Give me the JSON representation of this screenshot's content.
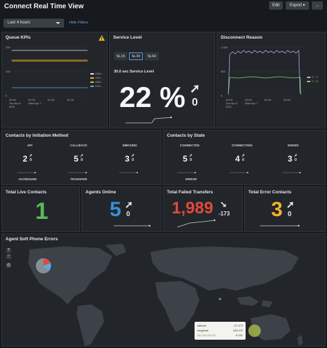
{
  "header": {
    "title": "Connect Real Time View",
    "edit_label": "Edit",
    "export_label": "Export ▾",
    "more_label": "..."
  },
  "filters": {
    "time_range": "Last 4 hours",
    "hide_filters": "Hide Filters"
  },
  "queue_kpis": {
    "title": "Queue KPIs",
    "y_ticks": [
      "200",
      "100",
      "0"
    ],
    "x_ticks": [
      {
        "time": "23:00",
        "date": "Tue Apr 6",
        "year": "2021"
      },
      {
        "time": "00:00",
        "date": "Wed Apr 7",
        "year": ""
      },
      {
        "time": "01:00",
        "date": "",
        "year": ""
      },
      {
        "time": "02:00",
        "date": "",
        "year": ""
      }
    ],
    "legend": [
      "HAN...",
      "SLE...",
      "ABA...",
      "HOL..."
    ],
    "colors": [
      "#e8e8e8",
      "#f0b429",
      "#f0b429",
      "#5fa6e8"
    ],
    "warning_icon": "warning-icon"
  },
  "service_level": {
    "title": "Service Level",
    "tabs": [
      "SL15",
      "SL30",
      "SL60"
    ],
    "active_tab": "SL30",
    "subtitle": "30.0 sec Service Level",
    "value": "22 %",
    "delta": "0"
  },
  "disconnect_reason": {
    "title": "Disconnect Reason",
    "y_ticks": [
      "1,000",
      "500",
      "0"
    ],
    "x_ticks": [
      {
        "time": "23:00",
        "date": "Tue Apr 6",
        "year": "2021"
      },
      {
        "time": "00:00",
        "date": "Wed Apr 7",
        "year": ""
      },
      {
        "time": "01:00",
        "date": "",
        "year": ""
      },
      {
        "time": "02:00",
        "date": "",
        "year": ""
      }
    ],
    "legend": [
      "C...T",
      "C...R"
    ],
    "colors": [
      "#b9a9e8",
      "#8ccf6a"
    ]
  },
  "initiation": {
    "title": "Contacts by Initiation Method",
    "items": [
      {
        "label": "API",
        "value": "2",
        "delta": "0"
      },
      {
        "label": "CALLBACK",
        "value": "5",
        "delta": "0"
      },
      {
        "label": "INBOUND",
        "value": "3",
        "delta": "0"
      },
      {
        "label": "OUTBOUND",
        "value": "",
        "delta": ""
      },
      {
        "label": "TRANSFER",
        "value": "",
        "delta": ""
      }
    ]
  },
  "by_state": {
    "title": "Contacts by State",
    "items": [
      {
        "label": "CONNECTED",
        "value": "5",
        "delta": "0"
      },
      {
        "label": "CONNECTING",
        "value": "4",
        "delta": "0"
      },
      {
        "label": "ENDED",
        "value": "3",
        "delta": "0"
      },
      {
        "label": "ERROR",
        "value": "",
        "delta": ""
      }
    ]
  },
  "live_contacts": {
    "title": "Total Live Contacts",
    "value": "1",
    "color": "#5cb85c"
  },
  "agents_online": {
    "title": "Agents Online",
    "value": "5",
    "delta": "0",
    "color": "#3a8fd8"
  },
  "failed_transfers": {
    "title": "Total Failed Transfers",
    "value": "1,989",
    "delta": "-173",
    "color": "#e04a3f"
  },
  "error_contacts": {
    "title": "Total Error Contacts",
    "value": "3",
    "delta": "0",
    "color": "#f0b429"
  },
  "soft_phone": {
    "title": "Agent Soft Phone Errors",
    "zoom_in": "+",
    "zoom_out": "−",
    "tooltip": {
      "latitude_label": "latitude",
      "latitude_value": "-27.5°S",
      "longitude_label": "longitude",
      "longitude_value": "153.0°E",
      "count_label": "SE.234.234.05",
      "count_value": "6,761"
    }
  }
}
